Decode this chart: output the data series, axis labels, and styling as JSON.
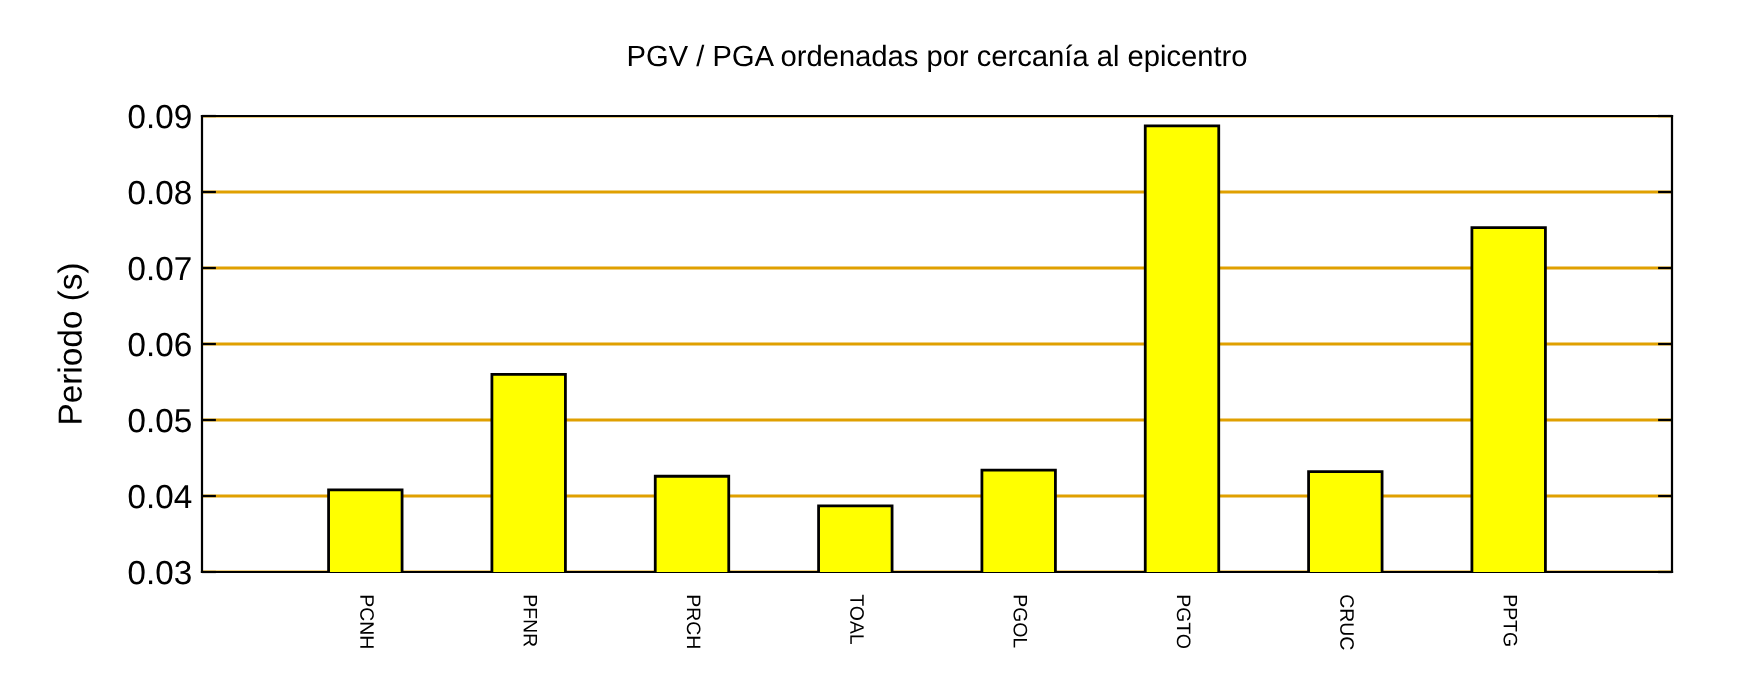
{
  "chart_data": {
    "type": "bar",
    "title": "PGV / PGA ordenadas por cercanía al epicentro",
    "ylabel": "Periodo (s)",
    "categories": [
      "PCNH",
      "PFNR",
      "PRCH",
      "TOAL",
      "PGOL",
      "PGTO",
      "CRUC",
      "PPTG"
    ],
    "values": [
      0.0408,
      0.056,
      0.0426,
      0.0387,
      0.0434,
      0.0887,
      0.0432,
      0.0753
    ],
    "color": "#ffff00",
    "ylim": [
      0.03,
      0.09
    ],
    "yticks": [
      0.03,
      0.04,
      0.05,
      0.06,
      0.07,
      0.08,
      0.09
    ],
    "grid": "y"
  }
}
